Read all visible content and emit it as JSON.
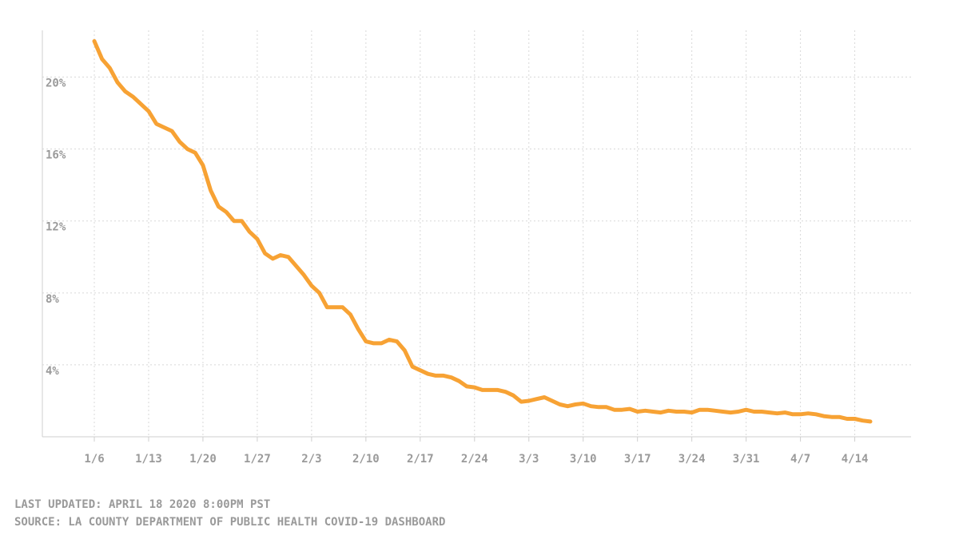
{
  "chart_data": {
    "type": "line",
    "categories": [
      "1/6",
      null,
      null,
      null,
      null,
      null,
      null,
      "1/13",
      null,
      null,
      null,
      null,
      null,
      null,
      "1/20",
      null,
      null,
      null,
      null,
      null,
      null,
      "1/27",
      null,
      null,
      null,
      null,
      null,
      null,
      "2/3",
      null,
      null,
      null,
      null,
      null,
      null,
      "2/10",
      null,
      null,
      null,
      null,
      null,
      null,
      "2/17",
      null,
      null,
      null,
      null,
      null,
      null,
      "2/24",
      null,
      null,
      null,
      null,
      null,
      null,
      "3/3",
      null,
      null,
      null,
      null,
      null,
      null,
      "3/10",
      null,
      null,
      null,
      null,
      null,
      null,
      "3/17",
      null,
      null,
      null,
      null,
      null,
      null,
      "3/24",
      null,
      null,
      null,
      null,
      null,
      null,
      "3/31",
      null,
      null,
      null,
      null,
      null,
      null,
      "4/7",
      null,
      null,
      null,
      null,
      null,
      null,
      "4/14",
      null,
      null
    ],
    "values": [
      22.0,
      21.0,
      20.5,
      19.7,
      19.2,
      18.9,
      18.5,
      18.1,
      17.4,
      17.2,
      17.0,
      16.4,
      16.0,
      15.8,
      15.1,
      13.7,
      12.8,
      12.5,
      12.0,
      12.0,
      11.4,
      11.0,
      10.2,
      9.9,
      10.1,
      10.0,
      9.5,
      9.0,
      8.4,
      8.0,
      7.2,
      7.2,
      7.2,
      6.8,
      6.0,
      5.3,
      5.2,
      5.2,
      5.4,
      5.3,
      4.8,
      3.9,
      3.7,
      3.5,
      3.4,
      3.4,
      3.3,
      3.1,
      2.8,
      2.75,
      2.6,
      2.6,
      2.6,
      2.5,
      2.3,
      1.95,
      2.0,
      2.1,
      2.2,
      2.0,
      1.8,
      1.7,
      1.8,
      1.85,
      1.7,
      1.65,
      1.65,
      1.5,
      1.5,
      1.55,
      1.4,
      1.45,
      1.4,
      1.35,
      1.45,
      1.4,
      1.4,
      1.35,
      1.5,
      1.5,
      1.45,
      1.4,
      1.35,
      1.4,
      1.5,
      1.4,
      1.4,
      1.35,
      1.3,
      1.35,
      1.25,
      1.25,
      1.3,
      1.25,
      1.15,
      1.1,
      1.1,
      1.0,
      1.0,
      0.9,
      0.85
    ],
    "color": "#f7a234",
    "ylim": [
      0,
      22.6
    ],
    "yticks": [
      {
        "value": 4,
        "label": "4%"
      },
      {
        "value": 8,
        "label": "8%"
      },
      {
        "value": 12,
        "label": "12%"
      },
      {
        "value": 16,
        "label": "16%"
      },
      {
        "value": 20,
        "label": "20%"
      }
    ],
    "grid": true,
    "notes": [
      "LAST UPDATED: APRIL 18 2020 8:00PM PST",
      "SOURCE: LA COUNTY DEPARTMENT OF PUBLIC HEALTH COVID-19 DASHBOARD"
    ]
  }
}
